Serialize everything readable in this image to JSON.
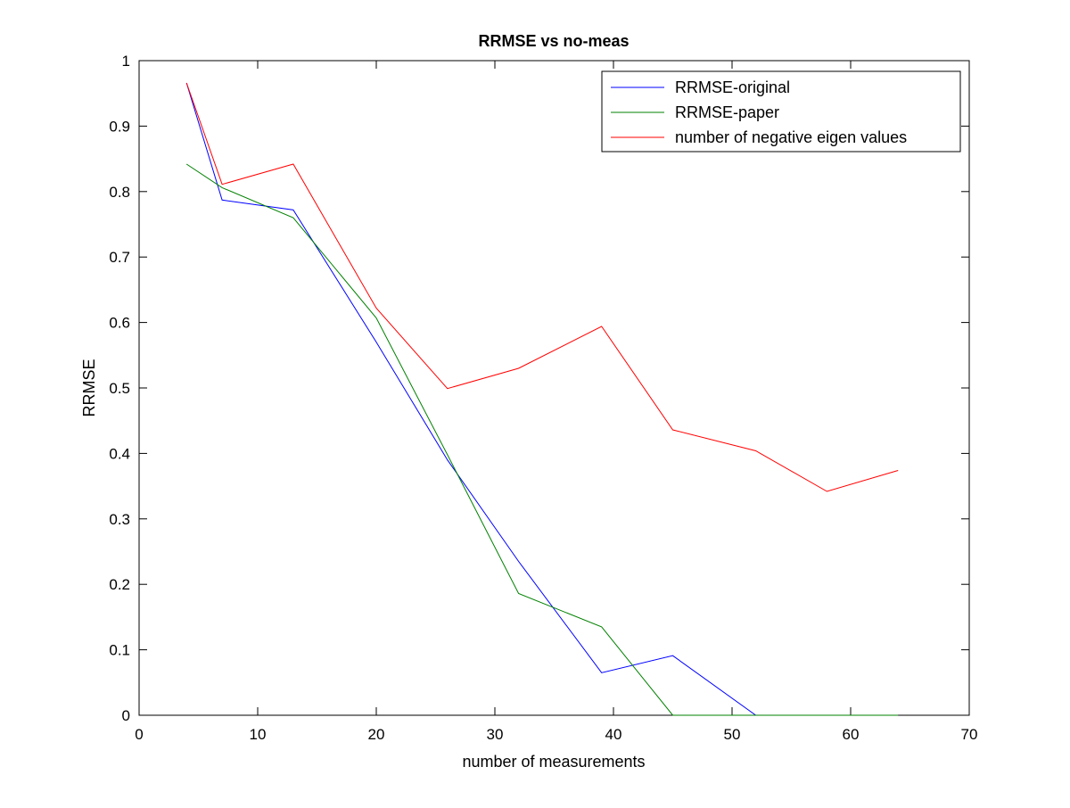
{
  "chart_data": {
    "type": "line",
    "title": "RRMSE vs no-meas",
    "xlabel": "number of measurements",
    "ylabel": "RRMSE",
    "xlim": [
      0,
      70
    ],
    "ylim": [
      0,
      1
    ],
    "xticks": [
      0,
      10,
      20,
      30,
      40,
      50,
      60,
      70
    ],
    "yticks": [
      0,
      0.1,
      0.2,
      0.3,
      0.4,
      0.5,
      0.6,
      0.7,
      0.8,
      0.9,
      1
    ],
    "x_tick_labels": [
      "0",
      "10",
      "20",
      "30",
      "40",
      "50",
      "60",
      "70"
    ],
    "y_tick_labels": [
      "0",
      "0.1",
      "0.2",
      "0.3",
      "0.4",
      "0.5",
      "0.6",
      "0.7",
      "0.8",
      "0.9",
      "1"
    ],
    "grid": false,
    "legend_position": "top-right",
    "x": [
      4,
      7,
      13,
      20,
      26,
      32,
      39,
      45,
      52,
      58,
      64
    ],
    "series": [
      {
        "name": "RRMSE-original",
        "color": "#0000ff",
        "values": [
          0.966,
          0.787,
          0.772,
          0.57,
          0.39,
          0.235,
          0.065,
          0.091,
          0.0,
          0.0,
          0.0
        ]
      },
      {
        "name": "RRMSE-paper",
        "color": "#008000",
        "values": [
          0.842,
          0.806,
          0.76,
          0.607,
          0.398,
          0.186,
          0.135,
          0.0,
          0.0,
          0.0,
          0.0
        ]
      },
      {
        "name": "number of negative eigen values",
        "color": "#ff0000",
        "values": [
          0.966,
          0.811,
          0.842,
          0.622,
          0.499,
          0.53,
          0.594,
          0.436,
          0.404,
          0.342,
          0.374
        ]
      }
    ]
  }
}
